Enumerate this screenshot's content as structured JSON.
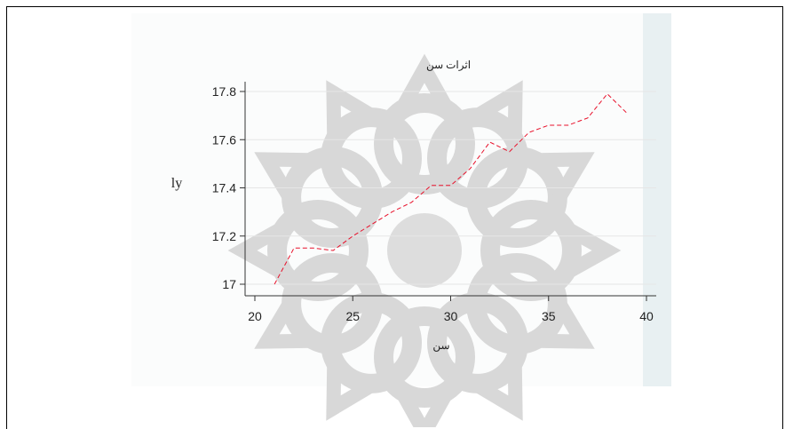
{
  "chart_data": {
    "type": "line",
    "title": "اثرات سن",
    "xlabel": "سن",
    "ylabel": "ly",
    "xlim": [
      20,
      40
    ],
    "ylim": [
      17,
      17.8
    ],
    "xticks": [
      20,
      25,
      30,
      35,
      40
    ],
    "yticks": [
      17,
      17.2,
      17.4,
      17.6,
      17.8
    ],
    "grid": "horizontal",
    "series": [
      {
        "color": "#e8102a",
        "style": "dashed",
        "x": [
          21,
          22,
          23,
          24,
          25,
          26,
          27,
          28,
          29,
          30,
          31,
          32,
          33,
          34,
          35,
          36,
          37,
          38,
          39
        ],
        "y": [
          17.0,
          17.15,
          17.15,
          17.14,
          17.2,
          17.25,
          17.3,
          17.34,
          17.41,
          17.41,
          17.48,
          17.59,
          17.55,
          17.63,
          17.66,
          17.66,
          17.69,
          17.79,
          17.71
        ]
      }
    ]
  }
}
